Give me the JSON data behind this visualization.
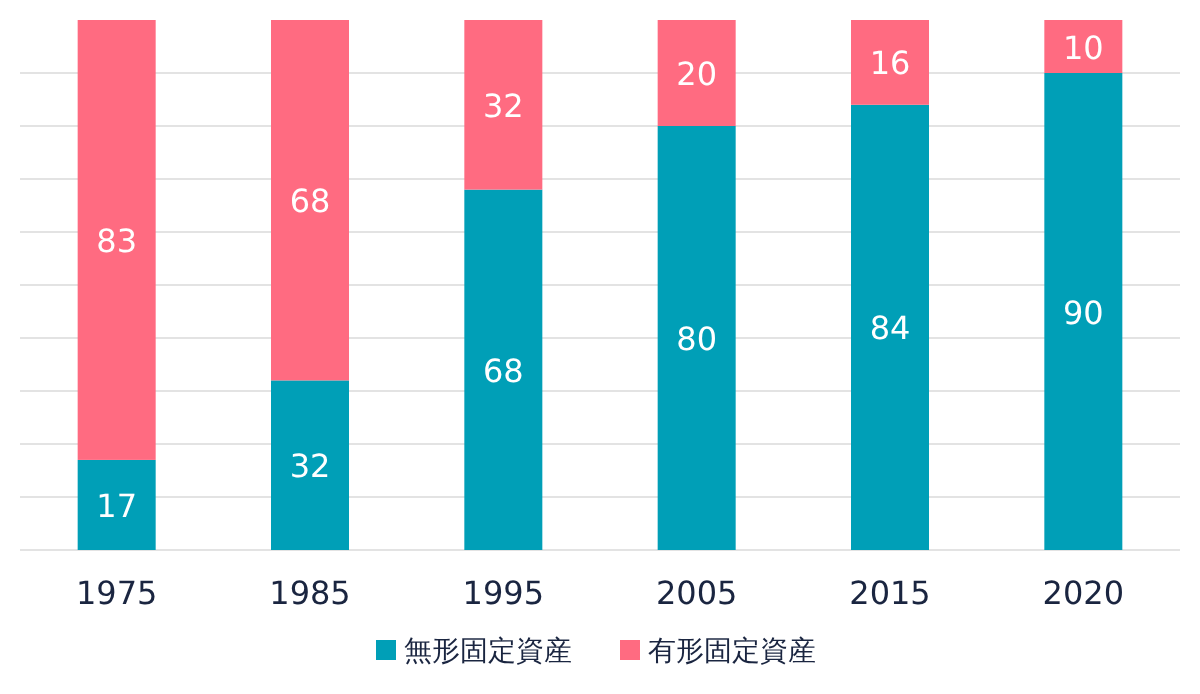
{
  "chart_data": {
    "type": "bar",
    "stacked": true,
    "categories": [
      "1975",
      "1985",
      "1995",
      "2005",
      "2015",
      "2020"
    ],
    "series": [
      {
        "name": "無形固定資産",
        "color": "#009fb7",
        "values": [
          17,
          32,
          68,
          80,
          84,
          90
        ]
      },
      {
        "name": "有形固定資産",
        "color": "#ff6b81",
        "values": [
          83,
          68,
          32,
          20,
          16,
          10
        ]
      }
    ],
    "ylim": [
      0,
      100
    ],
    "yticks": [
      {
        "value": 0,
        "label": null
      },
      {
        "value": 10,
        "label": null
      },
      {
        "value": 20,
        "label": null
      },
      {
        "value": 30,
        "label": null
      },
      {
        "value": 40,
        "label": null
      },
      {
        "value": 50,
        "label": null
      },
      {
        "value": 60,
        "label": null
      },
      {
        "value": 70,
        "label": null
      },
      {
        "value": 80,
        "label": null
      },
      {
        "value": 90,
        "label": null
      }
    ],
    "tick_labels": "x",
    "grid": "y",
    "legend": "bottom",
    "data_labels": true
  }
}
